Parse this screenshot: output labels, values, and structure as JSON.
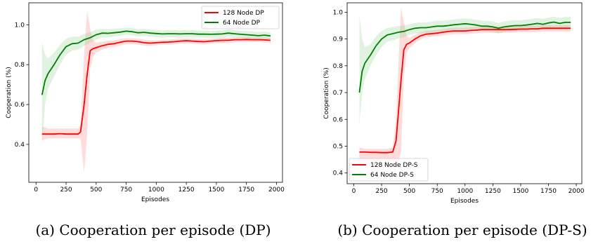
{
  "chart_data": [
    {
      "type": "line",
      "caption": "(a) Cooperation per episode (DP)",
      "xlabel": "Episodes",
      "ylabel": "Cooperation (%)",
      "xlim": [
        -60,
        2050
      ],
      "ylim": [
        0.21,
        1.11
      ],
      "xticks": [
        0,
        250,
        500,
        750,
        1000,
        1250,
        1500,
        1750,
        2000
      ],
      "yticks": [
        0.4,
        0.6,
        0.8,
        1.0
      ],
      "ytick_labels": [
        "0.4",
        "0.6",
        "0.8",
        "1.0"
      ],
      "grid": false,
      "legend_position": "top-right",
      "series": [
        {
          "name": "128 Node DP",
          "color": "#ff0000",
          "band_color": "#ff8080",
          "x": [
            50,
            100,
            150,
            200,
            250,
            300,
            350,
            370,
            400,
            425,
            450,
            475,
            500,
            550,
            600,
            650,
            700,
            750,
            800,
            850,
            900,
            950,
            1000,
            1050,
            1100,
            1150,
            1200,
            1250,
            1300,
            1350,
            1400,
            1450,
            1500,
            1550,
            1600,
            1650,
            1700,
            1750,
            1800,
            1850,
            1900,
            1950
          ],
          "values": [
            0.452,
            0.452,
            0.452,
            0.454,
            0.452,
            0.452,
            0.452,
            0.462,
            0.6,
            0.75,
            0.87,
            0.88,
            0.885,
            0.895,
            0.902,
            0.905,
            0.912,
            0.918,
            0.918,
            0.915,
            0.91,
            0.908,
            0.91,
            0.912,
            0.913,
            0.915,
            0.918,
            0.92,
            0.918,
            0.916,
            0.915,
            0.918,
            0.92,
            0.922,
            0.922,
            0.925,
            0.925,
            0.926,
            0.925,
            0.925,
            0.924,
            0.922
          ],
          "upper": [
            0.49,
            0.48,
            0.48,
            0.48,
            0.48,
            0.48,
            0.48,
            0.5,
            0.85,
            1.07,
            0.98,
            0.92,
            0.91,
            0.915,
            0.92,
            0.922,
            0.928,
            0.932,
            0.932,
            0.93,
            0.925,
            0.922,
            0.922,
            0.925,
            0.925,
            0.928,
            0.93,
            0.932,
            0.93,
            0.928,
            0.928,
            0.93,
            0.932,
            0.935,
            0.935,
            0.937,
            0.937,
            0.938,
            0.937,
            0.937,
            0.936,
            0.934
          ],
          "lower": [
            0.42,
            0.43,
            0.43,
            0.43,
            0.43,
            0.43,
            0.43,
            0.43,
            0.26,
            0.45,
            0.78,
            0.84,
            0.86,
            0.875,
            0.885,
            0.888,
            0.896,
            0.902,
            0.903,
            0.9,
            0.895,
            0.893,
            0.897,
            0.9,
            0.9,
            0.902,
            0.905,
            0.907,
            0.905,
            0.903,
            0.902,
            0.905,
            0.907,
            0.909,
            0.909,
            0.912,
            0.912,
            0.913,
            0.912,
            0.912,
            0.911,
            0.909
          ]
        },
        {
          "name": "64 Node DP",
          "color": "#008000",
          "band_color": "#90d090",
          "x": [
            50,
            75,
            100,
            150,
            200,
            250,
            300,
            350,
            400,
            450,
            500,
            550,
            600,
            650,
            700,
            750,
            800,
            850,
            900,
            950,
            1000,
            1050,
            1100,
            1150,
            1200,
            1250,
            1300,
            1350,
            1400,
            1450,
            1500,
            1550,
            1600,
            1650,
            1700,
            1750,
            1800,
            1850,
            1900,
            1950
          ],
          "values": [
            0.648,
            0.72,
            0.755,
            0.8,
            0.85,
            0.89,
            0.905,
            0.908,
            0.925,
            0.935,
            0.95,
            0.958,
            0.957,
            0.96,
            0.963,
            0.968,
            0.965,
            0.96,
            0.962,
            0.958,
            0.956,
            0.954,
            0.955,
            0.955,
            0.954,
            0.955,
            0.955,
            0.953,
            0.953,
            0.952,
            0.953,
            0.954,
            0.958,
            0.955,
            0.952,
            0.95,
            0.948,
            0.945,
            0.948,
            0.944
          ],
          "upper": [
            0.91,
            0.85,
            0.83,
            0.86,
            0.9,
            0.93,
            0.94,
            0.94,
            0.955,
            0.962,
            0.975,
            0.98,
            0.978,
            0.98,
            0.982,
            0.985,
            0.983,
            0.978,
            0.98,
            0.976,
            0.974,
            0.972,
            0.973,
            0.973,
            0.972,
            0.973,
            0.973,
            0.971,
            0.971,
            0.97,
            0.971,
            0.972,
            0.976,
            0.973,
            0.97,
            0.968,
            0.966,
            0.963,
            0.966,
            0.962
          ],
          "lower": [
            0.4,
            0.6,
            0.68,
            0.74,
            0.8,
            0.85,
            0.87,
            0.875,
            0.895,
            0.908,
            0.925,
            0.936,
            0.936,
            0.94,
            0.944,
            0.951,
            0.947,
            0.942,
            0.944,
            0.94,
            0.938,
            0.936,
            0.937,
            0.937,
            0.936,
            0.937,
            0.937,
            0.935,
            0.935,
            0.934,
            0.935,
            0.936,
            0.94,
            0.937,
            0.934,
            0.932,
            0.93,
            0.927,
            0.93,
            0.926
          ]
        }
      ]
    },
    {
      "type": "line",
      "caption": "(b) Cooperation per episode (DP-S)",
      "xlabel": "Episodes",
      "ylabel": "Cooperation (%)",
      "xlim": [
        -60,
        2050
      ],
      "ylim": [
        0.36,
        1.035
      ],
      "xticks": [
        0,
        250,
        500,
        750,
        1000,
        1250,
        1500,
        1750,
        2000
      ],
      "yticks": [
        0.4,
        0.5,
        0.6,
        0.7,
        0.8,
        0.9,
        1.0
      ],
      "ytick_labels": [
        "0.4",
        "0.5",
        "0.6",
        "0.7",
        "0.8",
        "0.9",
        "1.0"
      ],
      "grid": false,
      "legend_position": "bottom-left",
      "series": [
        {
          "name": "128 Node DP-S",
          "color": "#ff0000",
          "band_color": "#ff8080",
          "x": [
            50,
            100,
            150,
            200,
            250,
            300,
            350,
            380,
            400,
            425,
            450,
            475,
            500,
            550,
            600,
            650,
            700,
            750,
            800,
            850,
            900,
            950,
            1000,
            1050,
            1100,
            1150,
            1200,
            1250,
            1300,
            1350,
            1400,
            1450,
            1500,
            1550,
            1600,
            1650,
            1700,
            1750,
            1800,
            1850,
            1900,
            1950
          ],
          "values": [
            0.478,
            0.478,
            0.477,
            0.477,
            0.476,
            0.476,
            0.478,
            0.52,
            0.62,
            0.75,
            0.86,
            0.88,
            0.885,
            0.9,
            0.912,
            0.918,
            0.92,
            0.922,
            0.925,
            0.928,
            0.93,
            0.93,
            0.93,
            0.932,
            0.933,
            0.935,
            0.935,
            0.935,
            0.935,
            0.935,
            0.935,
            0.936,
            0.937,
            0.937,
            0.938,
            0.938,
            0.94,
            0.94,
            0.94,
            0.94,
            0.94,
            0.94
          ],
          "upper": [
            0.495,
            0.49,
            0.49,
            0.49,
            0.49,
            0.49,
            0.495,
            0.6,
            0.8,
            1.02,
            0.96,
            0.91,
            0.905,
            0.915,
            0.925,
            0.93,
            0.932,
            0.934,
            0.937,
            0.94,
            0.942,
            0.942,
            0.942,
            0.944,
            0.945,
            0.947,
            0.947,
            0.947,
            0.947,
            0.947,
            0.947,
            0.948,
            0.949,
            0.949,
            0.95,
            0.95,
            0.952,
            0.952,
            0.952,
            0.952,
            0.952,
            0.952
          ],
          "lower": [
            0.44,
            0.44,
            0.44,
            0.44,
            0.44,
            0.44,
            0.44,
            0.44,
            0.44,
            0.48,
            0.76,
            0.85,
            0.865,
            0.885,
            0.899,
            0.906,
            0.908,
            0.91,
            0.913,
            0.916,
            0.918,
            0.918,
            0.918,
            0.92,
            0.921,
            0.923,
            0.923,
            0.923,
            0.923,
            0.923,
            0.923,
            0.924,
            0.925,
            0.925,
            0.926,
            0.926,
            0.928,
            0.928,
            0.928,
            0.928,
            0.928,
            0.928
          ]
        },
        {
          "name": "64 Node DP-S",
          "color": "#008000",
          "band_color": "#90d090",
          "x": [
            50,
            75,
            100,
            150,
            200,
            250,
            300,
            350,
            400,
            450,
            500,
            550,
            600,
            650,
            700,
            750,
            800,
            850,
            900,
            950,
            1000,
            1050,
            1100,
            1150,
            1200,
            1250,
            1300,
            1350,
            1400,
            1450,
            1500,
            1550,
            1600,
            1650,
            1700,
            1750,
            1800,
            1850,
            1900,
            1950
          ],
          "values": [
            0.7,
            0.78,
            0.81,
            0.84,
            0.875,
            0.9,
            0.915,
            0.92,
            0.925,
            0.928,
            0.935,
            0.94,
            0.942,
            0.942,
            0.945,
            0.948,
            0.948,
            0.95,
            0.953,
            0.955,
            0.957,
            0.955,
            0.952,
            0.948,
            0.948,
            0.945,
            0.94,
            0.945,
            0.948,
            0.95,
            0.95,
            0.952,
            0.955,
            0.958,
            0.955,
            0.96,
            0.963,
            0.958,
            0.962,
            0.962
          ],
          "upper": [
            0.99,
            0.9,
            0.87,
            0.88,
            0.91,
            0.93,
            0.94,
            0.945,
            0.948,
            0.95,
            0.955,
            0.96,
            0.962,
            0.962,
            0.965,
            0.968,
            0.968,
            0.97,
            0.973,
            0.975,
            0.977,
            0.975,
            0.972,
            0.968,
            0.968,
            0.965,
            0.96,
            0.965,
            0.968,
            0.97,
            0.97,
            0.972,
            0.975,
            0.978,
            0.975,
            0.98,
            0.983,
            0.978,
            0.982,
            0.982
          ],
          "lower": [
            0.58,
            0.7,
            0.75,
            0.8,
            0.84,
            0.87,
            0.89,
            0.895,
            0.902,
            0.906,
            0.915,
            0.92,
            0.922,
            0.922,
            0.925,
            0.928,
            0.928,
            0.93,
            0.933,
            0.935,
            0.937,
            0.935,
            0.932,
            0.928,
            0.928,
            0.925,
            0.92,
            0.925,
            0.928,
            0.93,
            0.93,
            0.932,
            0.935,
            0.938,
            0.935,
            0.94,
            0.943,
            0.938,
            0.942,
            0.942
          ]
        }
      ]
    }
  ]
}
